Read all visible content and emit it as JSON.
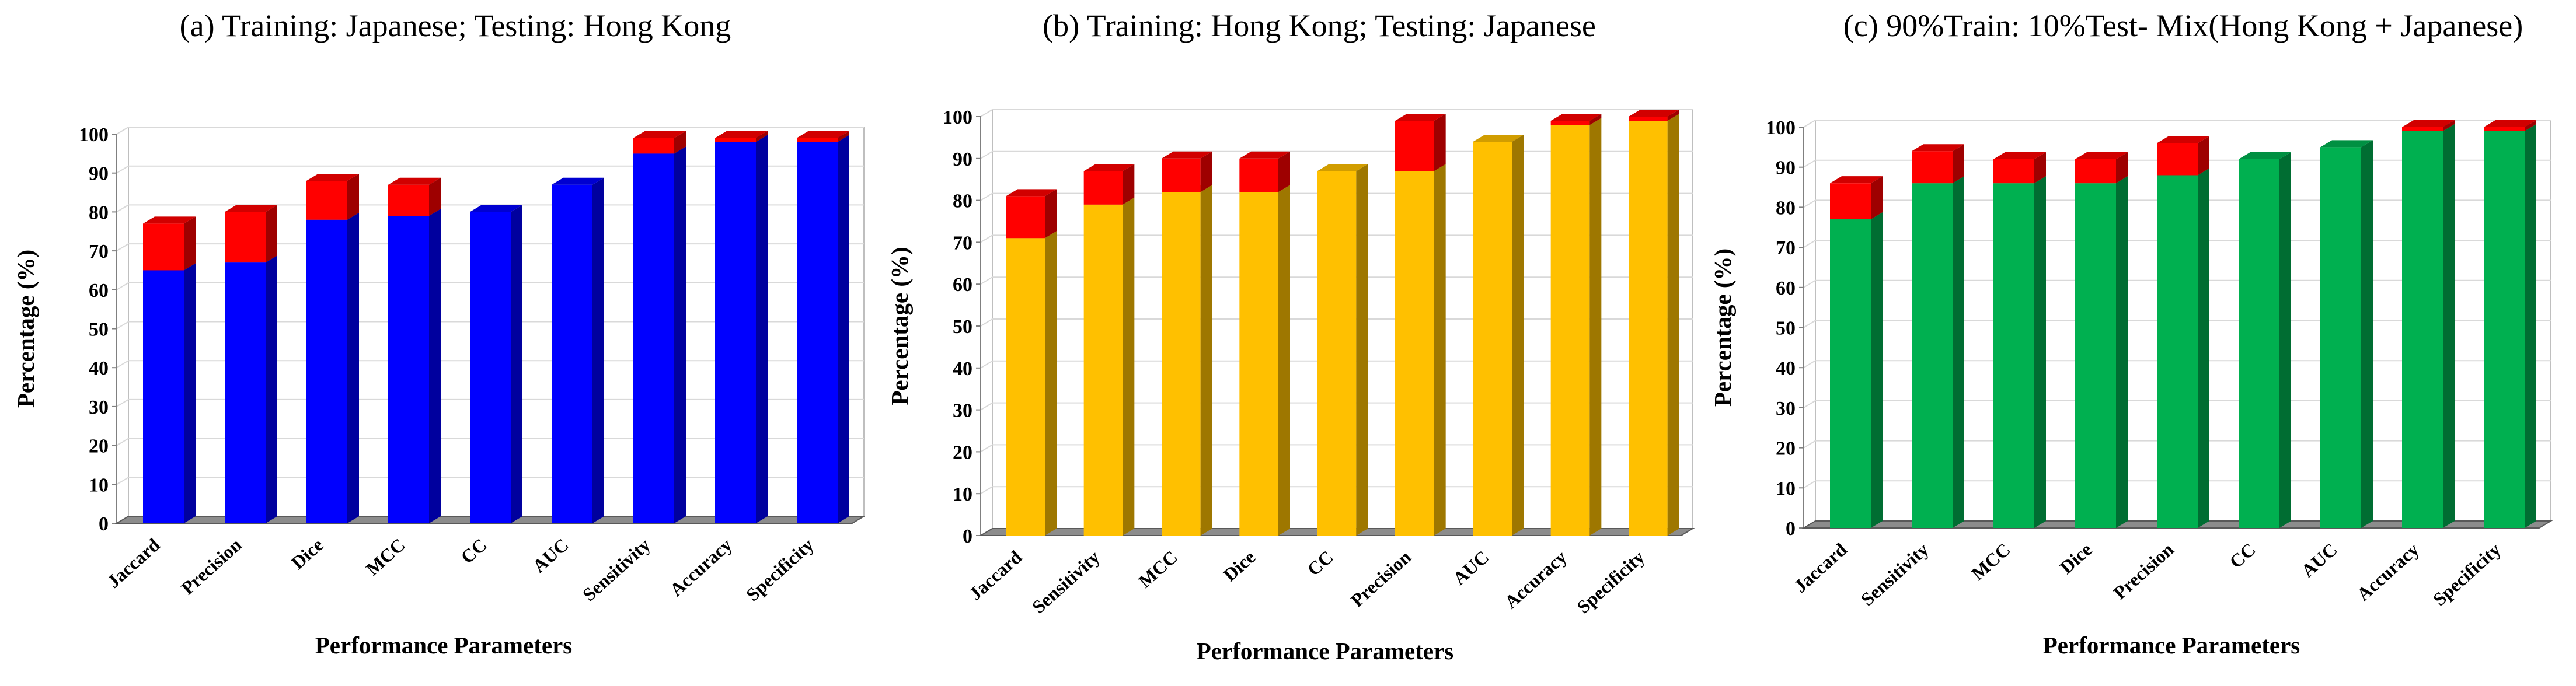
{
  "chart_data": [
    {
      "type": "bar",
      "stacked": true,
      "title": "(a) Training: Japanese; Testing: Hong Kong",
      "xlabel": "Performance Parameters",
      "ylabel": "Percentage (%)",
      "ylim": [
        0,
        100
      ],
      "yticks": [
        0,
        10,
        20,
        30,
        40,
        50,
        60,
        70,
        80,
        90,
        100
      ],
      "grid": true,
      "categories": [
        "Jaccard",
        "Precision",
        "Dice",
        "MCC",
        "CC",
        "AUC",
        "Sensitivity",
        "Accuracy",
        "Specificity"
      ],
      "series": [
        {
          "color": "#0000ff",
          "values": [
            65,
            67,
            78,
            79,
            80,
            87,
            95,
            98,
            98
          ]
        },
        {
          "color": "#ff0000",
          "values": [
            12,
            13,
            10,
            8,
            0,
            0,
            4,
            1,
            1
          ]
        }
      ]
    },
    {
      "type": "bar",
      "stacked": true,
      "title": "(b) Training: Hong Kong; Testing: Japanese",
      "xlabel": "Performance Parameters",
      "ylabel": "Percentage (%)",
      "ylim": [
        0,
        100
      ],
      "yticks": [
        0,
        10,
        20,
        30,
        40,
        50,
        60,
        70,
        80,
        90,
        100
      ],
      "grid": true,
      "categories": [
        "Jaccard",
        "Sensitivity",
        "MCC",
        "Dice",
        "CC",
        "Precision",
        "AUC",
        "Accuracy",
        "Specificity"
      ],
      "series": [
        {
          "color": "#ffc000",
          "values": [
            71,
            79,
            82,
            82,
            87,
            87,
            94,
            98,
            99
          ]
        },
        {
          "color": "#ff0000",
          "values": [
            10,
            8,
            8,
            8,
            0,
            12,
            0,
            1,
            1
          ]
        }
      ]
    },
    {
      "type": "bar",
      "stacked": true,
      "title": "(c) 90%Train: 10%Test- Mix(Hong Kong + Japanese)",
      "xlabel": "Performance Parameters",
      "ylabel": "Percentage (%)",
      "ylim": [
        0,
        100
      ],
      "yticks": [
        0,
        10,
        20,
        30,
        40,
        50,
        60,
        70,
        80,
        90,
        100
      ],
      "grid": true,
      "categories": [
        "Jaccard",
        "Sensitivity",
        "MCC",
        "Dice",
        "Precision",
        "CC",
        "AUC",
        "Accuracy",
        "Specificity"
      ],
      "series": [
        {
          "color": "#00b050",
          "values": [
            77,
            86,
            86,
            86,
            88,
            92,
            95,
            99,
            99
          ]
        },
        {
          "color": "#ff0000",
          "values": [
            9,
            8,
            6,
            6,
            8,
            0,
            0,
            1,
            1
          ]
        }
      ]
    }
  ]
}
